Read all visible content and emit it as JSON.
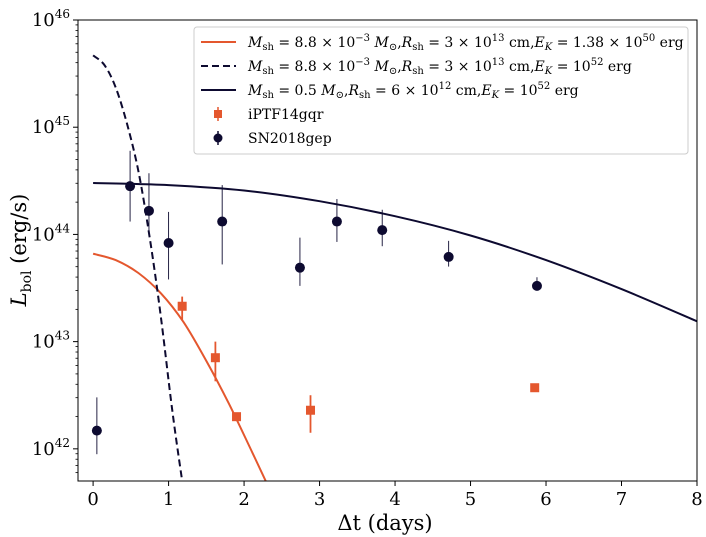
{
  "chart_data": {
    "type": "scatter",
    "xlabel": "Δt (days)",
    "ylabel": "L_bol (erg/s)",
    "ylabel_main": "L",
    "ylabel_sub": "bol",
    "ylabel_units": "(erg/s)",
    "xlim": [
      -0.2,
      8
    ],
    "ylim_log10": [
      41.7,
      46
    ],
    "x_ticks": [
      0,
      1,
      2,
      3,
      4,
      5,
      6,
      7,
      8
    ],
    "y_ticks": [
      {
        "base": "10",
        "exp": "42"
      },
      {
        "base": "10",
        "exp": "43"
      },
      {
        "base": "10",
        "exp": "44"
      },
      {
        "base": "10",
        "exp": "45"
      },
      {
        "base": "10",
        "exp": "46"
      }
    ],
    "colors": {
      "orange": "#e4572e",
      "navy": "#0d0a30"
    },
    "legend": {
      "location": "upper right",
      "entries": [
        {
          "label": "M_sh = 8.8 × 10^-3 M_⊙, R_sh = 3 × 10^13 cm, E_K = 1.38 × 10^50 erg",
          "style": "solid-orange"
        },
        {
          "label": "M_sh = 8.8 × 10^-3 M_⊙, R_sh = 3 × 10^13 cm, E_K = 10^52 erg",
          "style": "dashed-navy"
        },
        {
          "label": "M_sh = 0.5 M_⊙, R_sh = 6 × 10^12 cm, E_K = 10^52 erg",
          "style": "solid-navy"
        },
        {
          "label": "iPTF14gqr",
          "style": "square-orange"
        },
        {
          "label": "SN2018gep",
          "style": "circle-navy"
        }
      ]
    },
    "model_curves": [
      {
        "name": "orange-solid",
        "style": "solid",
        "color": "orange",
        "x": [
          0,
          0.3,
          0.6,
          0.9,
          1.2,
          1.5,
          1.8,
          2.1,
          2.3
        ],
        "log10_y": [
          43.82,
          43.76,
          43.64,
          43.45,
          43.18,
          42.82,
          42.42,
          41.98,
          41.68
        ]
      },
      {
        "name": "navy-dashed",
        "style": "dashed",
        "color": "navy",
        "x": [
          0,
          0.15,
          0.3,
          0.45,
          0.6,
          0.75,
          0.9,
          1.05,
          1.18
        ],
        "log10_y": [
          45.67,
          45.58,
          45.37,
          45.03,
          44.59,
          43.97,
          43.22,
          42.35,
          41.7
        ]
      },
      {
        "name": "navy-solid",
        "style": "solid",
        "color": "navy",
        "x": [
          0,
          1,
          2,
          3,
          4,
          5,
          6,
          7,
          8
        ],
        "log10_y": [
          44.48,
          44.46,
          44.41,
          44.31,
          44.17,
          43.99,
          43.76,
          43.49,
          43.19
        ]
      }
    ],
    "series": [
      {
        "name": "iPTF14gqr",
        "marker": "square",
        "color": "orange",
        "points": [
          {
            "x": 1.18,
            "log10_y": 43.33,
            "err_lo": 43.2,
            "err_hi": 43.42
          },
          {
            "x": 1.62,
            "log10_y": 42.85,
            "err_lo": 42.63,
            "err_hi": 43.0
          },
          {
            "x": 1.9,
            "log10_y": 42.3,
            "err_lo": 42.28,
            "err_hi": 42.32
          },
          {
            "x": 2.88,
            "log10_y": 42.36,
            "err_lo": 42.15,
            "err_hi": 42.5
          },
          {
            "x": 5.85,
            "log10_y": 42.57,
            "err_lo": 42.55,
            "err_hi": 42.59
          }
        ]
      },
      {
        "name": "SN2018gep",
        "marker": "circle",
        "color": "navy",
        "points": [
          {
            "x": 0.05,
            "log10_y": 42.17,
            "err_lo": 41.95,
            "err_hi": 42.48
          },
          {
            "x": 0.49,
            "log10_y": 44.45,
            "err_lo": 44.12,
            "err_hi": 44.78
          },
          {
            "x": 0.74,
            "log10_y": 44.22,
            "err_lo": 43.98,
            "err_hi": 44.57
          },
          {
            "x": 1.0,
            "log10_y": 43.92,
            "err_lo": 43.58,
            "err_hi": 44.21
          },
          {
            "x": 1.71,
            "log10_y": 44.12,
            "err_lo": 43.72,
            "err_hi": 44.46
          },
          {
            "x": 2.74,
            "log10_y": 43.69,
            "err_lo": 43.52,
            "err_hi": 43.97
          },
          {
            "x": 3.23,
            "log10_y": 44.12,
            "err_lo": 43.93,
            "err_hi": 44.33
          },
          {
            "x": 3.83,
            "log10_y": 44.04,
            "err_lo": 43.89,
            "err_hi": 44.23
          },
          {
            "x": 4.71,
            "log10_y": 43.79,
            "err_lo": 43.7,
            "err_hi": 43.94
          },
          {
            "x": 5.88,
            "log10_y": 43.52,
            "err_lo": 43.48,
            "err_hi": 43.6
          }
        ]
      }
    ]
  }
}
